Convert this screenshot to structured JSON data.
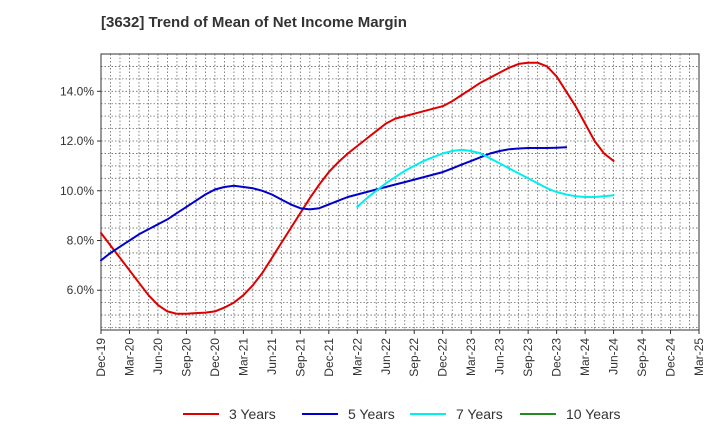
{
  "chart_data": {
    "type": "line",
    "title": "[3632]  Trend of Mean of Net Income Margin",
    "xlabel": "",
    "ylabel": "",
    "x_tick_labels": [
      "Dec-19",
      "Mar-20",
      "Jun-20",
      "Sep-20",
      "Dec-20",
      "Mar-21",
      "Jun-21",
      "Sep-21",
      "Dec-21",
      "Mar-22",
      "Jun-22",
      "Sep-22",
      "Dec-22",
      "Mar-23",
      "Jun-23",
      "Sep-23",
      "Dec-23",
      "Mar-24",
      "Jun-24",
      "Sep-24",
      "Dec-24",
      "Mar-25"
    ],
    "y_tick_labels": [
      "6.0%",
      "8.0%",
      "10.0%",
      "12.0%",
      "14.0%"
    ],
    "y_ticks": [
      6,
      8,
      10,
      12,
      14
    ],
    "ylim": [
      4.4,
      15.5
    ],
    "grid": true,
    "legend_position": "bottom",
    "series": [
      {
        "name": "3 Years",
        "color": "#dd0000",
        "points": [
          [
            "Dec-19",
            8.3
          ],
          [
            "Jan-20",
            7.8
          ],
          [
            "Feb-20",
            7.3
          ],
          [
            "Mar-20",
            6.8
          ],
          [
            "Apr-20",
            6.3
          ],
          [
            "May-20",
            5.8
          ],
          [
            "Jun-20",
            5.4
          ],
          [
            "Jul-20",
            5.15
          ],
          [
            "Aug-20",
            5.05
          ],
          [
            "Sep-20",
            5.05
          ],
          [
            "Oct-20",
            5.08
          ],
          [
            "Nov-20",
            5.1
          ],
          [
            "Dec-20",
            5.15
          ],
          [
            "Jan-21",
            5.3
          ],
          [
            "Feb-21",
            5.5
          ],
          [
            "Mar-21",
            5.8
          ],
          [
            "Apr-21",
            6.2
          ],
          [
            "May-21",
            6.7
          ],
          [
            "Jun-21",
            7.3
          ],
          [
            "Jul-21",
            7.9
          ],
          [
            "Aug-21",
            8.5
          ],
          [
            "Sep-21",
            9.1
          ],
          [
            "Oct-21",
            9.7
          ],
          [
            "Nov-21",
            10.25
          ],
          [
            "Dec-21",
            10.75
          ],
          [
            "Jan-22",
            11.15
          ],
          [
            "Feb-22",
            11.5
          ],
          [
            "Mar-22",
            11.8
          ],
          [
            "Apr-22",
            12.1
          ],
          [
            "May-22",
            12.4
          ],
          [
            "Jun-22",
            12.7
          ],
          [
            "Jul-22",
            12.9
          ],
          [
            "Aug-22",
            13.0
          ],
          [
            "Sep-22",
            13.1
          ],
          [
            "Oct-22",
            13.2
          ],
          [
            "Nov-22",
            13.3
          ],
          [
            "Dec-22",
            13.4
          ],
          [
            "Jan-23",
            13.6
          ],
          [
            "Feb-23",
            13.85
          ],
          [
            "Mar-23",
            14.1
          ],
          [
            "Apr-23",
            14.35
          ],
          [
            "May-23",
            14.55
          ],
          [
            "Jun-23",
            14.75
          ],
          [
            "Jul-23",
            14.95
          ],
          [
            "Aug-23",
            15.1
          ],
          [
            "Sep-23",
            15.15
          ],
          [
            "Oct-23",
            15.15
          ],
          [
            "Nov-23",
            15.0
          ],
          [
            "Dec-23",
            14.6
          ],
          [
            "Jan-24",
            14.0
          ],
          [
            "Feb-24",
            13.4
          ],
          [
            "Mar-24",
            12.7
          ],
          [
            "Apr-24",
            12.0
          ],
          [
            "May-24",
            11.5
          ],
          [
            "Jun-24",
            11.2
          ]
        ]
      },
      {
        "name": "5 Years",
        "color": "#0000cc",
        "points": [
          [
            "Dec-19",
            7.2
          ],
          [
            "Jan-20",
            7.5
          ],
          [
            "Feb-20",
            7.75
          ],
          [
            "Mar-20",
            8.0
          ],
          [
            "Apr-20",
            8.25
          ],
          [
            "May-20",
            8.45
          ],
          [
            "Jun-20",
            8.65
          ],
          [
            "Jul-20",
            8.85
          ],
          [
            "Aug-20",
            9.1
          ],
          [
            "Sep-20",
            9.35
          ],
          [
            "Oct-20",
            9.6
          ],
          [
            "Nov-20",
            9.85
          ],
          [
            "Dec-20",
            10.05
          ],
          [
            "Jan-21",
            10.15
          ],
          [
            "Feb-21",
            10.2
          ],
          [
            "Mar-21",
            10.15
          ],
          [
            "Apr-21",
            10.1
          ],
          [
            "May-21",
            10.0
          ],
          [
            "Jun-21",
            9.85
          ],
          [
            "Jul-21",
            9.65
          ],
          [
            "Aug-21",
            9.45
          ],
          [
            "Sep-21",
            9.3
          ],
          [
            "Oct-21",
            9.25
          ],
          [
            "Nov-21",
            9.3
          ],
          [
            "Dec-21",
            9.45
          ],
          [
            "Jan-22",
            9.6
          ],
          [
            "Feb-22",
            9.75
          ],
          [
            "Mar-22",
            9.85
          ],
          [
            "Apr-22",
            9.95
          ],
          [
            "May-22",
            10.05
          ],
          [
            "Jun-22",
            10.15
          ],
          [
            "Jul-22",
            10.25
          ],
          [
            "Aug-22",
            10.35
          ],
          [
            "Sep-22",
            10.45
          ],
          [
            "Oct-22",
            10.55
          ],
          [
            "Nov-22",
            10.65
          ],
          [
            "Dec-22",
            10.75
          ],
          [
            "Jan-23",
            10.9
          ],
          [
            "Feb-23",
            11.05
          ],
          [
            "Mar-23",
            11.2
          ],
          [
            "Apr-23",
            11.35
          ],
          [
            "May-23",
            11.5
          ],
          [
            "Jun-23",
            11.6
          ],
          [
            "Jul-23",
            11.67
          ],
          [
            "Aug-23",
            11.7
          ],
          [
            "Sep-23",
            11.72
          ],
          [
            "Oct-23",
            11.72
          ],
          [
            "Nov-23",
            11.72
          ],
          [
            "Dec-23",
            11.73
          ],
          [
            "Jan-24",
            11.75
          ]
        ]
      },
      {
        "name": "7 Years",
        "color": "#00eeee",
        "points": [
          [
            "Mar-22",
            9.35
          ],
          [
            "Apr-22",
            9.7
          ],
          [
            "May-22",
            10.0
          ],
          [
            "Jun-22",
            10.3
          ],
          [
            "Jul-22",
            10.55
          ],
          [
            "Aug-22",
            10.8
          ],
          [
            "Sep-22",
            11.0
          ],
          [
            "Oct-22",
            11.2
          ],
          [
            "Nov-22",
            11.35
          ],
          [
            "Dec-22",
            11.5
          ],
          [
            "Jan-23",
            11.6
          ],
          [
            "Feb-23",
            11.65
          ],
          [
            "Mar-23",
            11.6
          ],
          [
            "Apr-23",
            11.5
          ],
          [
            "May-23",
            11.3
          ],
          [
            "Jun-23",
            11.1
          ],
          [
            "Jul-23",
            10.9
          ],
          [
            "Aug-23",
            10.7
          ],
          [
            "Sep-23",
            10.5
          ],
          [
            "Oct-23",
            10.3
          ],
          [
            "Nov-23",
            10.1
          ],
          [
            "Dec-23",
            9.95
          ],
          [
            "Jan-24",
            9.85
          ],
          [
            "Feb-24",
            9.78
          ],
          [
            "Mar-24",
            9.75
          ],
          [
            "Apr-24",
            9.75
          ],
          [
            "May-24",
            9.78
          ],
          [
            "Jun-24",
            9.82
          ]
        ]
      },
      {
        "name": "10 Years",
        "color": "#228b22",
        "points": []
      }
    ]
  }
}
